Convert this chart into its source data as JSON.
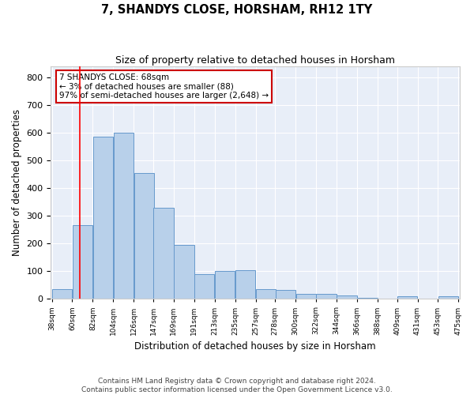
{
  "title": "7, SHANDYS CLOSE, HORSHAM, RH12 1TY",
  "subtitle": "Size of property relative to detached houses in Horsham",
  "xlabel": "Distribution of detached houses by size in Horsham",
  "ylabel": "Number of detached properties",
  "footer_line1": "Contains HM Land Registry data © Crown copyright and database right 2024.",
  "footer_line2": "Contains public sector information licensed under the Open Government Licence v3.0.",
  "annotation_title": "7 SHANDYS CLOSE: 68sqm",
  "annotation_line2": "← 3% of detached houses are smaller (88)",
  "annotation_line3": "97% of semi-detached houses are larger (2,648) →",
  "property_size": 68,
  "bar_left_edges": [
    38,
    60,
    82,
    104,
    126,
    147,
    169,
    191,
    213,
    235,
    257,
    278,
    300,
    322,
    344,
    366,
    388,
    409,
    431,
    453
  ],
  "bar_heights": [
    35,
    265,
    585,
    600,
    455,
    330,
    195,
    90,
    102,
    105,
    35,
    32,
    18,
    17,
    12,
    5,
    0,
    8,
    0,
    8
  ],
  "bin_width": 22,
  "bar_color": "#b8d0ea",
  "bar_edge_color": "#6699cc",
  "red_line_x": 68,
  "annotation_box_color": "#cc0000",
  "plot_bg_color": "#e8eef8",
  "ylim": [
    0,
    840
  ],
  "yticks": [
    0,
    100,
    200,
    300,
    400,
    500,
    600,
    700,
    800
  ],
  "x_tick_labels": [
    "38sqm",
    "60sqm",
    "82sqm",
    "104sqm",
    "126sqm",
    "147sqm",
    "169sqm",
    "191sqm",
    "213sqm",
    "235sqm",
    "257sqm",
    "278sqm",
    "300sqm",
    "322sqm",
    "344sqm",
    "366sqm",
    "388sqm",
    "409sqm",
    "431sqm",
    "453sqm",
    "475sqm"
  ],
  "title_fontsize": 10.5,
  "subtitle_fontsize": 9,
  "ylabel_fontsize": 8.5,
  "xlabel_fontsize": 8.5,
  "ytick_fontsize": 8,
  "xtick_fontsize": 6.5,
  "annotation_fontsize": 7.5,
  "footer_fontsize": 6.5
}
